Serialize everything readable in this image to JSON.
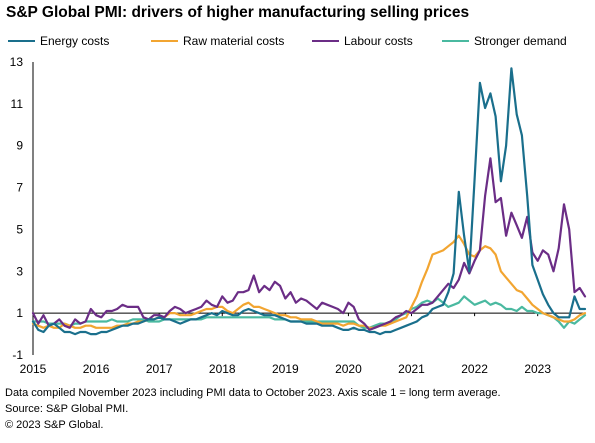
{
  "chart_data": {
    "type": "line",
    "title": "S&P Global PMI: drivers of higher manufacturing selling prices",
    "xlabel": "",
    "ylabel": "",
    "x_ticks": [
      "2015",
      "2016",
      "2017",
      "2018",
      "2019",
      "2020",
      "2021",
      "2022",
      "2023"
    ],
    "y_ticks": [
      13,
      11,
      9,
      7,
      5,
      3,
      1,
      -1
    ],
    "ylim": [
      -1,
      13
    ],
    "xlim": [
      "2015-01",
      "2023-10"
    ],
    "grid": false,
    "reference_line": 1,
    "legend_position": "top",
    "x": [
      "2015-01",
      "2015-02",
      "2015-03",
      "2015-04",
      "2015-05",
      "2015-06",
      "2015-07",
      "2015-08",
      "2015-09",
      "2015-10",
      "2015-11",
      "2015-12",
      "2016-01",
      "2016-02",
      "2016-03",
      "2016-04",
      "2016-05",
      "2016-06",
      "2016-07",
      "2016-08",
      "2016-09",
      "2016-10",
      "2016-11",
      "2016-12",
      "2017-01",
      "2017-02",
      "2017-03",
      "2017-04",
      "2017-05",
      "2017-06",
      "2017-07",
      "2017-08",
      "2017-09",
      "2017-10",
      "2017-11",
      "2017-12",
      "2018-01",
      "2018-02",
      "2018-03",
      "2018-04",
      "2018-05",
      "2018-06",
      "2018-07",
      "2018-08",
      "2018-09",
      "2018-10",
      "2018-11",
      "2018-12",
      "2019-01",
      "2019-02",
      "2019-03",
      "2019-04",
      "2019-05",
      "2019-06",
      "2019-07",
      "2019-08",
      "2019-09",
      "2019-10",
      "2019-11",
      "2019-12",
      "2020-01",
      "2020-02",
      "2020-03",
      "2020-04",
      "2020-05",
      "2020-06",
      "2020-07",
      "2020-08",
      "2020-09",
      "2020-10",
      "2020-11",
      "2020-12",
      "2021-01",
      "2021-02",
      "2021-03",
      "2021-04",
      "2021-05",
      "2021-06",
      "2021-07",
      "2021-08",
      "2021-09",
      "2021-10",
      "2021-11",
      "2021-12",
      "2022-01",
      "2022-02",
      "2022-03",
      "2022-04",
      "2022-05",
      "2022-06",
      "2022-07",
      "2022-08",
      "2022-09",
      "2022-10",
      "2022-11",
      "2022-12",
      "2023-01",
      "2023-02",
      "2023-03",
      "2023-04",
      "2023-05",
      "2023-06",
      "2023-07",
      "2023-08",
      "2023-09",
      "2023-10"
    ],
    "series": [
      {
        "name": "Energy costs",
        "color": "#1a6f8c",
        "values": [
          0.6,
          0.2,
          0.1,
          0.4,
          0.5,
          0.3,
          0.1,
          0.1,
          0.0,
          0.1,
          0.1,
          0.0,
          0.0,
          0.1,
          0.1,
          0.2,
          0.3,
          0.4,
          0.4,
          0.5,
          0.5,
          0.6,
          0.7,
          0.7,
          0.8,
          0.7,
          0.7,
          0.6,
          0.5,
          0.6,
          0.7,
          0.7,
          0.8,
          0.9,
          1.0,
          0.9,
          1.1,
          1.0,
          0.9,
          0.9,
          1.1,
          1.2,
          1.1,
          1.0,
          0.9,
          0.9,
          0.9,
          0.8,
          0.7,
          0.6,
          0.6,
          0.6,
          0.5,
          0.5,
          0.5,
          0.4,
          0.4,
          0.4,
          0.3,
          0.2,
          0.2,
          0.3,
          0.2,
          0.2,
          0.1,
          0.1,
          0.0,
          0.1,
          0.1,
          0.2,
          0.3,
          0.4,
          0.5,
          0.6,
          0.8,
          0.9,
          1.2,
          1.3,
          1.4,
          2.0,
          2.9,
          6.8,
          4.7,
          3.0,
          7.4,
          12.0,
          10.8,
          11.5,
          10.4,
          7.3,
          9.0,
          12.7,
          10.5,
          9.5,
          6.6,
          3.3,
          2.6,
          1.9,
          1.4,
          1.0,
          0.8,
          0.8,
          0.8,
          1.8,
          1.2,
          1.2
        ]
      },
      {
        "name": "Raw material costs",
        "color": "#f2a531",
        "values": [
          0.5,
          0.4,
          0.3,
          0.4,
          0.3,
          0.3,
          0.5,
          0.4,
          0.3,
          0.3,
          0.4,
          0.4,
          0.3,
          0.3,
          0.3,
          0.3,
          0.4,
          0.4,
          0.5,
          0.5,
          0.6,
          0.6,
          0.7,
          0.7,
          0.8,
          0.8,
          1.0,
          1.0,
          0.9,
          0.9,
          0.9,
          1.0,
          1.1,
          1.2,
          1.2,
          1.3,
          1.3,
          1.1,
          1.0,
          1.2,
          1.4,
          1.5,
          1.3,
          1.3,
          1.2,
          1.1,
          1.0,
          0.9,
          0.9,
          0.8,
          0.8,
          0.7,
          0.7,
          0.7,
          0.6,
          0.5,
          0.5,
          0.5,
          0.5,
          0.4,
          0.5,
          0.5,
          0.4,
          0.4,
          0.3,
          0.3,
          0.4,
          0.4,
          0.5,
          0.6,
          0.7,
          0.8,
          1.3,
          1.8,
          2.5,
          3.1,
          3.8,
          3.9,
          4.0,
          4.2,
          4.4,
          4.7,
          4.3,
          3.8,
          3.7,
          4.0,
          4.2,
          4.1,
          3.8,
          3.0,
          2.7,
          2.4,
          2.1,
          2.0,
          1.7,
          1.4,
          1.2,
          1.0,
          0.9,
          0.8,
          0.7,
          0.6,
          0.6,
          0.7,
          0.9,
          1.0
        ]
      },
      {
        "name": "Labour costs",
        "color": "#6b2d86",
        "values": [
          1.0,
          0.5,
          0.9,
          0.4,
          0.5,
          0.7,
          0.4,
          0.3,
          0.7,
          0.5,
          0.6,
          1.2,
          0.9,
          0.8,
          1.1,
          1.1,
          1.2,
          1.4,
          1.3,
          1.3,
          1.3,
          0.8,
          0.7,
          0.9,
          0.9,
          0.8,
          1.1,
          1.3,
          1.2,
          1.0,
          1.1,
          1.2,
          1.3,
          1.6,
          1.4,
          1.3,
          1.8,
          1.5,
          1.6,
          2.0,
          2.0,
          2.1,
          2.8,
          2.0,
          2.3,
          2.1,
          2.5,
          2.3,
          1.7,
          2.0,
          1.5,
          1.7,
          1.6,
          1.4,
          1.2,
          1.5,
          1.4,
          1.3,
          1.2,
          1.0,
          1.5,
          1.3,
          0.7,
          0.5,
          0.2,
          0.3,
          0.4,
          0.5,
          0.6,
          0.8,
          0.9,
          1.1,
          1.0,
          1.2,
          1.4,
          1.4,
          1.5,
          1.8,
          2.1,
          2.4,
          2.2,
          2.6,
          3.4,
          2.9,
          3.5,
          4.0,
          6.6,
          8.4,
          6.3,
          6.5,
          4.7,
          5.8,
          5.2,
          4.6,
          5.6,
          3.9,
          3.5,
          4.0,
          3.8,
          3.0,
          4.1,
          6.2,
          5.0,
          2.0,
          2.2,
          1.8
        ]
      },
      {
        "name": "Stronger demand",
        "color": "#4ab9a0",
        "values": [
          0.6,
          0.6,
          0.6,
          0.5,
          0.5,
          0.5,
          0.5,
          0.4,
          0.5,
          0.5,
          0.6,
          0.6,
          0.6,
          0.6,
          0.6,
          0.7,
          0.6,
          0.6,
          0.6,
          0.7,
          0.7,
          0.7,
          0.6,
          0.6,
          0.6,
          0.7,
          0.7,
          0.7,
          0.7,
          0.7,
          0.7,
          0.7,
          0.7,
          0.8,
          0.8,
          0.8,
          0.8,
          0.8,
          0.8,
          0.8,
          0.8,
          0.8,
          0.8,
          0.8,
          0.8,
          0.8,
          0.7,
          0.7,
          0.7,
          0.6,
          0.6,
          0.6,
          0.6,
          0.6,
          0.6,
          0.6,
          0.6,
          0.6,
          0.6,
          0.6,
          0.6,
          0.6,
          0.4,
          0.3,
          0.3,
          0.4,
          0.5,
          0.5,
          0.6,
          0.7,
          0.9,
          1.0,
          1.2,
          1.3,
          1.5,
          1.6,
          1.5,
          1.7,
          1.5,
          1.3,
          1.4,
          1.5,
          1.8,
          1.6,
          1.4,
          1.5,
          1.6,
          1.4,
          1.5,
          1.4,
          1.2,
          1.2,
          1.1,
          1.3,
          1.1,
          1.1,
          1.0,
          1.0,
          0.9,
          0.8,
          0.6,
          0.3,
          0.6,
          0.5,
          0.7,
          0.9
        ]
      }
    ]
  },
  "footnote": {
    "line1": "Data compiled November 2023 including PMI data to October 2023. Axis scale 1 = long term average.",
    "line2": "Source: S&P Global PMI.",
    "line3": "© 2023 S&P Global."
  }
}
